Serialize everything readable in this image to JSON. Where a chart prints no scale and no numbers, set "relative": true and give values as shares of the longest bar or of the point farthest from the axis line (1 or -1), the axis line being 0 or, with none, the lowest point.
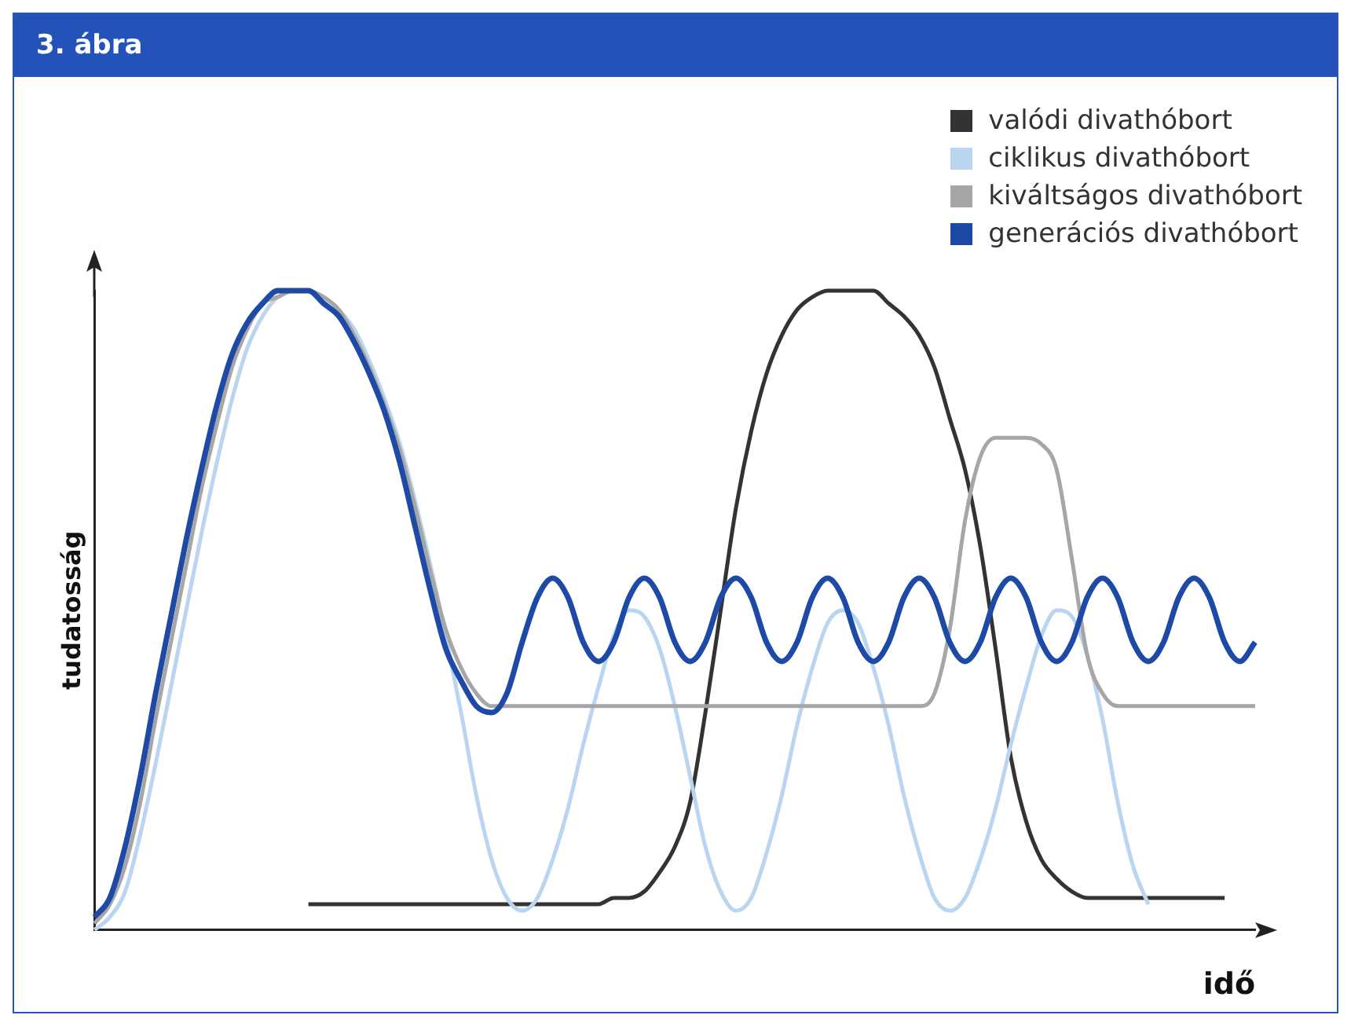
{
  "chart_data": {
    "type": "line",
    "title": "3. ábra",
    "xlabel": "idő",
    "ylabel": "tudatosság",
    "relative": true,
    "grid": false,
    "legend": "top right",
    "marker": "none",
    "line_style": "solid",
    "categories": [
      null,
      null,
      null,
      null,
      null,
      null,
      null,
      null,
      null,
      null,
      null,
      null,
      null,
      null,
      null,
      null,
      null,
      null,
      null,
      null,
      null,
      null,
      null,
      null,
      null,
      null,
      null,
      null,
      null,
      null,
      null,
      null,
      null,
      null,
      null,
      null,
      null,
      null,
      null,
      null,
      null,
      null,
      null,
      null,
      null,
      null,
      null,
      null,
      null,
      null,
      null,
      null,
      null,
      null,
      null,
      null,
      null,
      null,
      null,
      null,
      null,
      null,
      null,
      null,
      null,
      null,
      null,
      null,
      null,
      null,
      null,
      null,
      null,
      null,
      null,
      null,
      null
    ],
    "series": [
      {
        "name": "valódi divathóbort",
        "color": "#333333",
        "values": [
          null,
          null,
          null,
          null,
          null,
          null,
          null,
          null,
          null,
          null,
          null,
          null,
          null,
          null,
          0.04,
          0.04,
          0.04,
          0.04,
          0.04,
          0.04,
          0.04,
          0.04,
          0.04,
          0.04,
          0.04,
          0.04,
          0.04,
          0.04,
          0.04,
          0.04,
          0.04,
          0.04,
          0.04,
          0.04,
          0.05,
          0.05,
          0.06,
          0.09,
          0.13,
          0.2,
          0.34,
          0.5,
          0.66,
          0.78,
          0.87,
          0.93,
          0.97,
          0.99,
          1,
          1,
          1,
          1,
          0.98,
          0.96,
          0.93,
          0.88,
          0.8,
          0.72,
          0.6,
          0.44,
          0.27,
          0.17,
          0.11,
          0.08,
          0.06,
          0.05,
          0.05,
          0.05,
          0.05,
          0.05,
          0.05,
          0.05,
          0.05,
          0.05,
          0.05,
          null,
          null
        ]
      },
      {
        "name": "ciklikus divathóbort",
        "color": "#b9d5f0",
        "values": [
          0,
          0.02,
          0.06,
          0.15,
          0.26,
          0.38,
          0.5,
          0.62,
          0.73,
          0.83,
          0.91,
          0.96,
          0.99,
          1,
          1,
          0.99,
          0.97,
          0.94,
          0.89,
          0.83,
          0.76,
          0.67,
          0.57,
          0.46,
          0.34,
          0.21,
          0.11,
          0.05,
          0.03,
          0.05,
          0.11,
          0.19,
          0.29,
          0.38,
          0.46,
          0.5,
          0.49,
          0.44,
          0.35,
          0.24,
          0.13,
          0.06,
          0.03,
          0.05,
          0.12,
          0.21,
          0.32,
          0.41,
          0.48,
          0.5,
          0.48,
          0.41,
          0.32,
          0.21,
          0.12,
          0.05,
          0.03,
          0.05,
          0.11,
          0.19,
          0.29,
          0.38,
          0.46,
          0.5,
          0.49,
          0.43,
          0.33,
          0.2,
          0.1,
          0.04,
          null,
          null,
          null,
          null,
          null,
          null,
          null
        ]
      },
      {
        "name": "kiváltságos divathóbort",
        "color": "#a6a6a6",
        "values": [
          0.01,
          0.04,
          0.1,
          0.2,
          0.33,
          0.45,
          0.57,
          0.69,
          0.79,
          0.88,
          0.94,
          0.98,
          0.99,
          1,
          1,
          0.99,
          0.97,
          0.93,
          0.88,
          0.82,
          0.75,
          0.66,
          0.56,
          0.47,
          0.41,
          0.37,
          0.35,
          0.35,
          0.35,
          0.35,
          0.35,
          0.35,
          0.35,
          0.35,
          0.35,
          0.35,
          0.35,
          0.35,
          0.35,
          0.35,
          0.35,
          0.35,
          0.35,
          0.35,
          0.35,
          0.35,
          0.35,
          0.35,
          0.35,
          0.35,
          0.35,
          0.35,
          0.35,
          0.35,
          0.35,
          0.37,
          0.47,
          0.64,
          0.74,
          0.77,
          0.77,
          0.77,
          0.76,
          0.72,
          0.58,
          0.43,
          0.37,
          0.35,
          0.35,
          0.35,
          0.35,
          0.35,
          0.35,
          0.35,
          0.35,
          0.35,
          0.35
        ]
      },
      {
        "name": "generációs divathóbort",
        "color": "#1c4aa6",
        "values": [
          0.02,
          0.05,
          0.13,
          0.24,
          0.37,
          0.49,
          0.61,
          0.72,
          0.82,
          0.9,
          0.95,
          0.98,
          1,
          1,
          1,
          0.98,
          0.96,
          0.92,
          0.87,
          0.81,
          0.73,
          0.63,
          0.53,
          0.44,
          0.39,
          0.35,
          0.34,
          0.37,
          0.45,
          0.52,
          0.55,
          0.52,
          0.45,
          0.42,
          0.45,
          0.52,
          0.55,
          0.52,
          0.45,
          0.42,
          0.45,
          0.52,
          0.55,
          0.52,
          0.45,
          0.42,
          0.45,
          0.52,
          0.55,
          0.52,
          0.45,
          0.42,
          0.45,
          0.52,
          0.55,
          0.52,
          0.45,
          0.42,
          0.45,
          0.52,
          0.55,
          0.52,
          0.45,
          0.42,
          0.45,
          0.52,
          0.55,
          0.52,
          0.45,
          0.42,
          0.45,
          0.52,
          0.55,
          0.52,
          0.45,
          0.42,
          0.45
        ]
      }
    ]
  }
}
